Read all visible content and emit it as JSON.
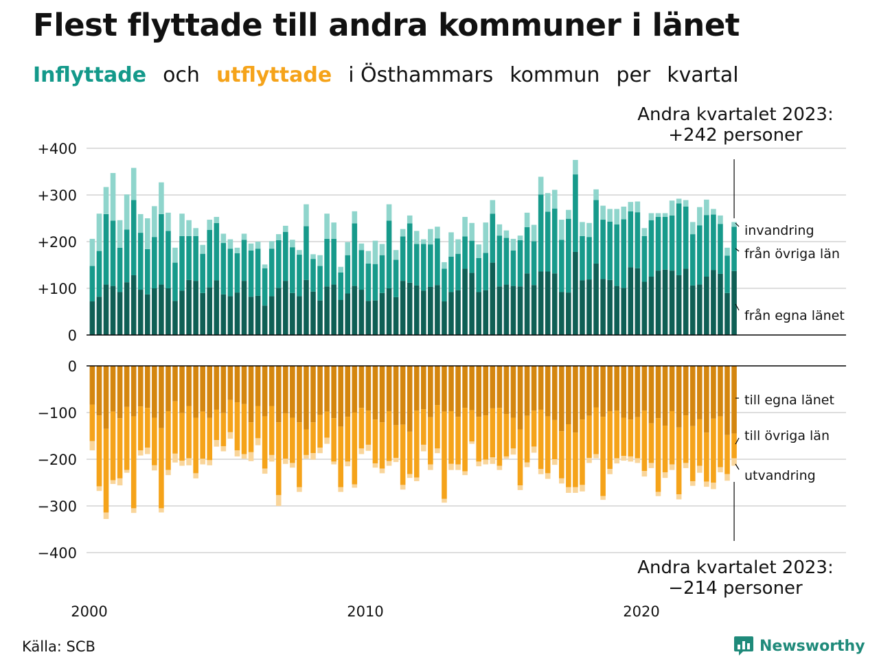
{
  "title": "Flest flyttade till andra kommuner i länet",
  "subtitle": {
    "part1": "Inflyttade",
    "part2": "och",
    "part3": "utflyttade",
    "part4": "i Östhammars",
    "part5": "kommun",
    "part6": "per",
    "part7": "kvartal"
  },
  "source": "Källa: SCB",
  "logo": {
    "text": "Newsworthy",
    "icon": "newsworthy-logo-icon"
  },
  "colors": {
    "in_own": "#0f5f55",
    "in_other": "#179a8b",
    "in_immig": "#8fd5cc",
    "out_own": "#d4860f",
    "out_other": "#f5a31a",
    "out_emig": "#f9d59a",
    "grid": "#dddddd",
    "axis": "#000000"
  },
  "chart_data": [
    {
      "type": "bar",
      "stacked": true,
      "panel": "top",
      "ylim": [
        0,
        400
      ],
      "yticks": [
        "+400",
        "+300",
        "+200",
        "+100",
        "0"
      ],
      "xticks": [
        "2000",
        "2010",
        "2020"
      ],
      "annotation_line1": "Andra kvartalet 2023:",
      "annotation_line2": "+242 personer",
      "series_labels": [
        "invandring",
        "från övriga län",
        "från egna länet"
      ],
      "start": "2000 Q1",
      "series": [
        {
          "name": "från egna länet",
          "values": [
            72,
            82,
            108,
            105,
            92,
            113,
            128,
            97,
            87,
            100,
            108,
            100,
            73,
            95,
            118,
            116,
            90,
            102,
            117,
            87,
            83,
            91,
            116,
            82,
            84,
            63,
            83,
            101,
            116,
            90,
            83,
            118,
            93,
            74,
            104,
            108,
            75,
            89,
            105,
            97,
            73,
            74,
            90,
            100,
            81,
            116,
            112,
            106,
            95,
            103,
            107,
            72,
            92,
            96,
            142,
            133,
            92,
            96,
            155,
            104,
            108,
            105,
            104,
            132,
            107,
            136,
            136,
            132,
            92,
            91,
            178,
            117,
            119,
            153,
            120,
            118,
            105,
            101,
            145,
            143,
            114,
            125,
            138,
            140,
            138,
            128,
            142,
            106,
            108,
            125,
            139,
            131,
            90,
            137
          ]
        },
        {
          "name": "från övriga län",
          "values": [
            76,
            98,
            151,
            140,
            95,
            113,
            161,
            122,
            97,
            110,
            151,
            123,
            82,
            117,
            94,
            96,
            84,
            123,
            123,
            110,
            102,
            84,
            88,
            99,
            101,
            80,
            102,
            102,
            105,
            98,
            89,
            115,
            70,
            74,
            102,
            98,
            59,
            82,
            134,
            85,
            80,
            78,
            81,
            145,
            80,
            95,
            127,
            89,
            100,
            91,
            100,
            70,
            76,
            78,
            69,
            69,
            73,
            80,
            105,
            109,
            100,
            76,
            99,
            99,
            94,
            165,
            128,
            139,
            112,
            158,
            166,
            95,
            91,
            136,
            127,
            125,
            132,
            147,
            120,
            120,
            98,
            121,
            115,
            113,
            118,
            154,
            133,
            110,
            127,
            132,
            119,
            107,
            80,
            95
          ]
        },
        {
          "name": "invandring",
          "values": [
            58,
            80,
            58,
            102,
            59,
            75,
            69,
            40,
            66,
            66,
            68,
            39,
            32,
            48,
            34,
            17,
            19,
            22,
            13,
            20,
            20,
            12,
            13,
            15,
            15,
            8,
            16,
            13,
            13,
            16,
            10,
            47,
            10,
            23,
            54,
            35,
            12,
            28,
            26,
            14,
            27,
            50,
            24,
            35,
            21,
            16,
            17,
            28,
            10,
            33,
            25,
            14,
            52,
            31,
            42,
            38,
            29,
            65,
            29,
            24,
            16,
            25,
            10,
            31,
            35,
            38,
            40,
            40,
            43,
            19,
            31,
            30,
            30,
            23,
            30,
            27,
            33,
            27,
            20,
            23,
            17,
            15,
            8,
            8,
            32,
            10,
            14,
            26,
            39,
            33,
            12,
            18,
            17,
            10
          ]
        }
      ]
    },
    {
      "type": "bar",
      "stacked": true,
      "panel": "bottom",
      "ylim": [
        -400,
        0
      ],
      "yticks": [
        "0",
        "−100",
        "−200",
        "−300",
        "−400"
      ],
      "annotation_line1": "Andra kvartalet 2023:",
      "annotation_line2": "−214 personer",
      "series_labels": [
        "till egna länet",
        "till övriga län",
        "utvandring"
      ],
      "start": "2000 Q1",
      "series": [
        {
          "name": "till egna länet",
          "values": [
            -83,
            -106,
            -135,
            -98,
            -112,
            -88,
            -108,
            -87,
            -90,
            -111,
            -133,
            -97,
            -76,
            -101,
            -86,
            -111,
            -98,
            -111,
            -94,
            -101,
            -73,
            -78,
            -82,
            -121,
            -86,
            -108,
            -86,
            -121,
            -102,
            -111,
            -121,
            -136,
            -121,
            -105,
            -98,
            -112,
            -130,
            -109,
            -100,
            -90,
            -96,
            -115,
            -121,
            -97,
            -127,
            -126,
            -141,
            -96,
            -93,
            -110,
            -84,
            -98,
            -97,
            -109,
            -90,
            -95,
            -109,
            -106,
            -91,
            -90,
            -103,
            -111,
            -136,
            -107,
            -96,
            -94,
            -108,
            -116,
            -140,
            -125,
            -143,
            -115,
            -107,
            -89,
            -109,
            -97,
            -96,
            -111,
            -115,
            -110,
            -96,
            -123,
            -112,
            -128,
            -97,
            -132,
            -106,
            -129,
            -114,
            -143,
            -113,
            -108,
            -148,
            -145
          ]
        },
        {
          "name": "till övriga län",
          "values": [
            -78,
            -152,
            -179,
            -147,
            -129,
            -135,
            -197,
            -94,
            -85,
            -102,
            -172,
            -126,
            -112,
            -102,
            -112,
            -119,
            -101,
            -91,
            -65,
            -71,
            -69,
            -103,
            -107,
            -64,
            -69,
            -112,
            -105,
            -156,
            -97,
            -97,
            -139,
            -55,
            -66,
            -70,
            -56,
            -93,
            -130,
            -96,
            -154,
            -87,
            -73,
            -94,
            -99,
            -107,
            -70,
            -129,
            -91,
            -143,
            -76,
            -101,
            -93,
            -187,
            -113,
            -102,
            -136,
            -67,
            -96,
            -95,
            -105,
            -124,
            -91,
            -66,
            -120,
            -100,
            -77,
            -127,
            -122,
            -84,
            -101,
            -135,
            -117,
            -140,
            -90,
            -100,
            -170,
            -124,
            -102,
            -82,
            -79,
            -88,
            -129,
            -85,
            -158,
            -100,
            -114,
            -143,
            -102,
            -118,
            -100,
            -105,
            -137,
            -109,
            -84,
            -53
          ]
        },
        {
          "name": "utvandring",
          "values": [
            -20,
            -10,
            -14,
            -8,
            -15,
            -6,
            -10,
            -11,
            -14,
            -11,
            -9,
            -11,
            -19,
            -11,
            -15,
            -11,
            -12,
            -11,
            -14,
            -11,
            -14,
            -13,
            -10,
            -19,
            -15,
            -11,
            -14,
            -23,
            -11,
            -10,
            -10,
            -8,
            -14,
            -12,
            -13,
            -6,
            -10,
            -10,
            -7,
            -12,
            -13,
            -9,
            -10,
            -10,
            -9,
            -10,
            -8,
            -8,
            -14,
            -12,
            -10,
            -8,
            -13,
            -12,
            -8,
            -5,
            -10,
            -10,
            -14,
            -9,
            -5,
            -13,
            -10,
            -10,
            -13,
            -11,
            -12,
            -12,
            -11,
            -12,
            -12,
            -14,
            -11,
            -9,
            -8,
            -11,
            -11,
            -10,
            -11,
            -10,
            -12,
            -11,
            -9,
            -12,
            -12,
            -11,
            -11,
            -10,
            -15,
            -11,
            -14,
            -11,
            -14,
            -16
          ]
        }
      ]
    }
  ]
}
